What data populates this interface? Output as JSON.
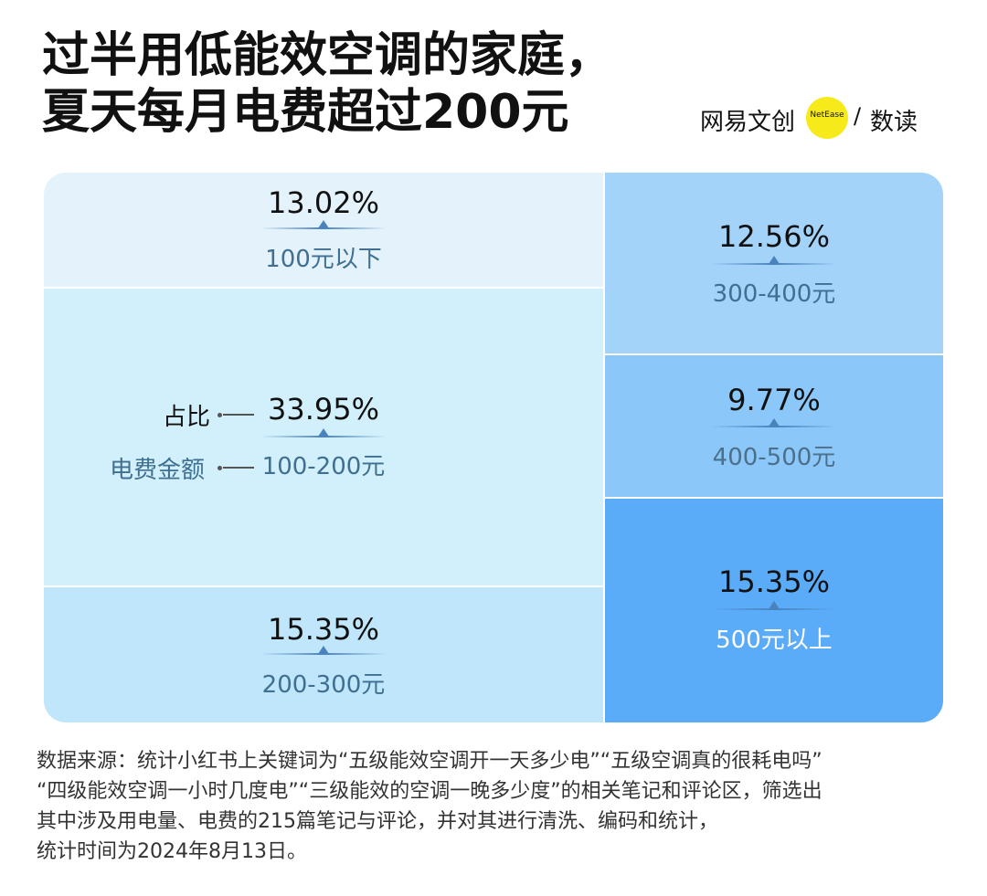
{
  "title": {
    "line1": "过半用低能效空调的家庭，",
    "line2": "夏天每月电费超过200元"
  },
  "brand": {
    "name": "网易文创",
    "badge": "NetEase",
    "slash": "/",
    "sub": "数读"
  },
  "legend": {
    "share_label": "占比",
    "amount_label": "电费金额"
  },
  "chart_data": {
    "type": "treemap",
    "title": "过半用低能效空调的家庭，夏天每月电费超过200元",
    "items": [
      {
        "label": "100元以下",
        "value": 13.02,
        "display": "13.02%",
        "color": "#e4f3fb"
      },
      {
        "label": "100-200元",
        "value": 33.95,
        "display": "33.95%",
        "color": "#d2f0fb"
      },
      {
        "label": "200-300元",
        "value": 15.35,
        "display": "15.35%",
        "color": "#bfe6fa"
      },
      {
        "label": "300-400元",
        "value": 12.56,
        "display": "12.56%",
        "color": "#a4d3fa"
      },
      {
        "label": "400-500元",
        "value": 9.77,
        "display": "9.77%",
        "color": "#8bc7f9"
      },
      {
        "label": "500元以上",
        "value": 15.35,
        "display": "15.35%",
        "color": "#5aacf8"
      }
    ]
  },
  "source": {
    "line1": "数据来源：统计小红书上关键词为“五级能效空调开一天多少电”“五级空调真的很耗电吗”",
    "line2": "“四级能效空调一小时几度电”“三级能效的空调一晚多少度”的相关笔记和评论区，筛选出",
    "line3": "其中涉及用电量、电费的215篇笔记与评论，并对其进行清洗、编码和统计，",
    "line4": "统计时间为2024年8月13日。"
  }
}
